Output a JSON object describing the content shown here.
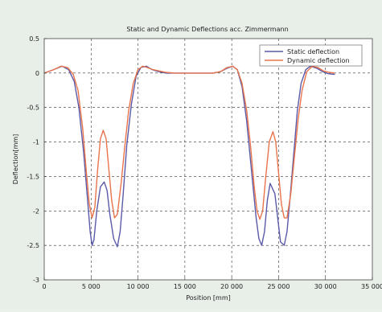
{
  "chart_data": {
    "type": "line",
    "title": "Static and Dynamic Deflections acc. Zimmermann",
    "xlabel": "Position [mm]",
    "ylabel": "Deflection[mm]",
    "xlim": [
      0,
      35000
    ],
    "ylim": [
      -3,
      0.5
    ],
    "xticks": [
      {
        "value": 0,
        "label": "0"
      },
      {
        "value": 5000,
        "label": "5 000"
      },
      {
        "value": 10000,
        "label": "10 000"
      },
      {
        "value": 15000,
        "label": "15 000"
      },
      {
        "value": 20000,
        "label": "20 000"
      },
      {
        "value": 25000,
        "label": "25 000"
      },
      {
        "value": 30000,
        "label": "30 000"
      },
      {
        "value": 35000,
        "label": "35 000"
      }
    ],
    "yticks": [
      {
        "value": 0.5,
        "label": "0.5"
      },
      {
        "value": 0,
        "label": "0"
      },
      {
        "value": -0.5,
        "label": "-0.5"
      },
      {
        "value": -1,
        "label": "-1"
      },
      {
        "value": -1.5,
        "label": "-1.5"
      },
      {
        "value": -2,
        "label": "-2"
      },
      {
        "value": -2.5,
        "label": "-2.5"
      },
      {
        "value": -3,
        "label": "-3"
      }
    ],
    "grid": true,
    "grid_style": "dashed",
    "legend_position": "top-right",
    "series": [
      {
        "name": "Static deflection",
        "color": "#5a5aa8",
        "x": [
          0,
          1000,
          1900,
          2600,
          3200,
          3700,
          4200,
          4600,
          4900,
          5100,
          5300,
          5600,
          6000,
          6400,
          6700,
          7000,
          7400,
          7800,
          8100,
          8400,
          8800,
          9300,
          9800,
          10300,
          10900,
          11500,
          12200,
          13000,
          14000,
          15000,
          16000,
          17000,
          18000,
          18800,
          19500,
          20100,
          20600,
          21100,
          21600,
          22100,
          22600,
          22900,
          23200,
          23500,
          23800,
          24100,
          24600,
          24900,
          25200,
          25600,
          25900,
          26200,
          26600,
          27000,
          27400,
          27900,
          28400,
          29100,
          29700,
          30300,
          31000
        ],
        "y": [
          0,
          0.05,
          0.1,
          0.05,
          -0.12,
          -0.5,
          -1.15,
          -1.8,
          -2.3,
          -2.5,
          -2.42,
          -2.0,
          -1.65,
          -1.58,
          -1.7,
          -2.05,
          -2.4,
          -2.52,
          -2.3,
          -1.8,
          -1.05,
          -0.45,
          -0.05,
          0.08,
          0.1,
          0.05,
          0.02,
          0,
          0,
          0,
          0,
          0,
          0,
          0.02,
          0.07,
          0.1,
          0.05,
          -0.2,
          -0.7,
          -1.4,
          -2.1,
          -2.4,
          -2.5,
          -2.3,
          -1.85,
          -1.6,
          -1.75,
          -2.1,
          -2.45,
          -2.5,
          -2.3,
          -1.85,
          -1.2,
          -0.55,
          -0.15,
          0.05,
          0.1,
          0.07,
          0.02,
          -0.01,
          -0.02
        ]
      },
      {
        "name": "Dynamic deflection",
        "color": "#e8744c",
        "x": [
          0,
          1000,
          1800,
          2500,
          3100,
          3600,
          4100,
          4500,
          4800,
          5100,
          5400,
          5700,
          6000,
          6300,
          6600,
          6900,
          7200,
          7500,
          7800,
          8200,
          8600,
          9000,
          9500,
          10000,
          10500,
          11000,
          11600,
          12300,
          13000,
          14000,
          15000,
          16000,
          17000,
          18000,
          18800,
          19500,
          20100,
          20600,
          21100,
          21600,
          22000,
          22400,
          22700,
          23000,
          23300,
          23600,
          24000,
          24400,
          24700,
          25000,
          25300,
          25600,
          25900,
          26300,
          26700,
          27100,
          27500,
          28000,
          28600,
          29200,
          29800,
          30400,
          31000
        ],
        "y": [
          0,
          0.05,
          0.1,
          0.08,
          -0.02,
          -0.25,
          -0.8,
          -1.45,
          -1.9,
          -2.1,
          -1.95,
          -1.4,
          -0.95,
          -0.83,
          -0.95,
          -1.4,
          -1.85,
          -2.1,
          -2.05,
          -1.6,
          -1.05,
          -0.55,
          -0.15,
          0.05,
          0.1,
          0.08,
          0.05,
          0.03,
          0.01,
          0,
          0,
          0,
          0,
          0,
          0.02,
          0.08,
          0.1,
          0.05,
          -0.15,
          -0.55,
          -1.05,
          -1.65,
          -2.0,
          -2.12,
          -2.0,
          -1.55,
          -1.0,
          -0.85,
          -1.0,
          -1.45,
          -1.9,
          -2.1,
          -2.1,
          -1.75,
          -1.2,
          -0.65,
          -0.25,
          0.02,
          0.1,
          0.08,
          0.03,
          0.01,
          0
        ]
      }
    ]
  }
}
